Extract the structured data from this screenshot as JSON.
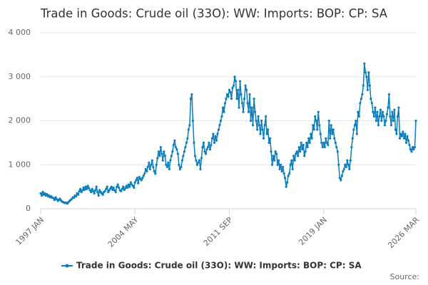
{
  "chart_data": {
    "type": "line",
    "title": "Trade in Goods: Crude oil (33O): WW: Imports: BOP: CP: SA",
    "source": "Source:",
    "categories": [
      "1997 JAN",
      null,
      null,
      null,
      null,
      null,
      null,
      null,
      null,
      null,
      null,
      null,
      null,
      null,
      null,
      null,
      null,
      null,
      null,
      null,
      null,
      null,
      null,
      null,
      null,
      null,
      null,
      null,
      null,
      null,
      null,
      null,
      null,
      null,
      null,
      null,
      null,
      null,
      null,
      null,
      null,
      null,
      null,
      null,
      null,
      null,
      null,
      null,
      null,
      null,
      null,
      null,
      null,
      null,
      null,
      null,
      null,
      null,
      null,
      null,
      null,
      null,
      null,
      null,
      null,
      null,
      null,
      null,
      null,
      null,
      null,
      null,
      null,
      null,
      null,
      null,
      null,
      null,
      null,
      null,
      null,
      null,
      null,
      null,
      null,
      null,
      null,
      null,
      "2004 MAY",
      null,
      null,
      null,
      null,
      null,
      null,
      null,
      null,
      null,
      null,
      null,
      null,
      null,
      null,
      null,
      null,
      null,
      null,
      null,
      null,
      null,
      null,
      null,
      null,
      null,
      null,
      null,
      null,
      null,
      null,
      null,
      null,
      null,
      null,
      null,
      null,
      null,
      null,
      null,
      null,
      null,
      null,
      null,
      null,
      null,
      null,
      null,
      null,
      null,
      null,
      null,
      null,
      null,
      null,
      null,
      null,
      null,
      null,
      null,
      null,
      null,
      null,
      null,
      null,
      null,
      null,
      null,
      null,
      null,
      null,
      null,
      null,
      null,
      null,
      null,
      null,
      null,
      null,
      null,
      null,
      null,
      null,
      null,
      null,
      null,
      null,
      null,
      "2011 SEP",
      null,
      null,
      null,
      null,
      null,
      null,
      null,
      null,
      null,
      null,
      null,
      null,
      null,
      null,
      null,
      null,
      null,
      null,
      null,
      null,
      null,
      null,
      null,
      null,
      null,
      null,
      null,
      null,
      null,
      null,
      null,
      null,
      null,
      null,
      null,
      null,
      null,
      null,
      null,
      null,
      null,
      null,
      null,
      null,
      null,
      null,
      null,
      null,
      null,
      null,
      null,
      null,
      null,
      null,
      null,
      null,
      null,
      null,
      null,
      null,
      null,
      null,
      null,
      null,
      null,
      null,
      null,
      null,
      null,
      null,
      null,
      null,
      null,
      null,
      null,
      null,
      null,
      null,
      null,
      null,
      null,
      null,
      null,
      null,
      null,
      null,
      null,
      "2019 JAN",
      null,
      null,
      null,
      null,
      null,
      null,
      null,
      null,
      null,
      null,
      null,
      null,
      null,
      null,
      null,
      null,
      null,
      null,
      null,
      null,
      null,
      null,
      null,
      null,
      null,
      null,
      null,
      null,
      null,
      null,
      null,
      null,
      null,
      null,
      null,
      null,
      null,
      null,
      null,
      null,
      null,
      null,
      null,
      null,
      null,
      null,
      null,
      null,
      null,
      null,
      null,
      null,
      null,
      null,
      null,
      null,
      null,
      null,
      null,
      null,
      null,
      null,
      null,
      null,
      null,
      null,
      null,
      null,
      null,
      null,
      null,
      null,
      null,
      null,
      null,
      null,
      null,
      null,
      null,
      null,
      null,
      null,
      null,
      null,
      null,
      "2026 MAR"
    ],
    "series": [
      {
        "name": "Trade in Goods: Crude oil (33O): WW: Imports: BOP: CP: SA",
        "color": "#0a7ebd",
        "values": [
          350,
          300,
          380,
          320,
          350,
          300,
          330,
          280,
          300,
          260,
          280,
          250,
          240,
          200,
          260,
          220,
          180,
          200,
          230,
          190,
          160,
          150,
          140,
          130,
          140,
          120,
          150,
          180,
          200,
          220,
          260,
          250,
          300,
          280,
          350,
          320,
          400,
          450,
          380,
          420,
          480,
          430,
          500,
          450,
          520,
          470,
          420,
          380,
          450,
          400,
          350,
          420,
          500,
          380,
          300,
          420,
          380,
          350,
          320,
          380,
          400,
          450,
          500,
          380,
          420,
          460,
          500,
          430,
          480,
          420,
          380,
          500,
          550,
          480,
          420,
          400,
          450,
          500,
          430,
          470,
          520,
          480,
          550,
          500,
          600,
          550,
          520,
          480,
          600,
          650,
          700,
          580,
          720,
          680,
          650,
          700,
          750,
          800,
          900,
          850,
          950,
          1050,
          900,
          1000,
          1100,
          950,
          850,
          800,
          1000,
          1150,
          1300,
          1200,
          1400,
          1250,
          1100,
          1300,
          1200,
          1000,
          950,
          1050,
          900,
          1100,
          1200,
          1300,
          1450,
          1550,
          1400,
          1350,
          1250,
          1000,
          900,
          950,
          1100,
          1200,
          1300,
          1400,
          1500,
          1600,
          1800,
          1900,
          2500,
          2600,
          2000,
          1500,
          1200,
          1100,
          1000,
          1050,
          1100,
          900,
          1150,
          1400,
          1500,
          1300,
          1250,
          1350,
          1400,
          1500,
          1350,
          1450,
          1600,
          1700,
          1500,
          1650,
          1550,
          1700,
          1800,
          1900,
          2000,
          2100,
          2300,
          2200,
          2400,
          2500,
          2600,
          2550,
          2700,
          2650,
          2500,
          2750,
          2800,
          3000,
          2900,
          2500,
          2700,
          2300,
          2900,
          2600,
          2400,
          2200,
          2500,
          2800,
          2700,
          2400,
          2200,
          2600,
          2000,
          2300,
          1900,
          2500,
          2200,
          2000,
          1800,
          2100,
          1900,
          1700,
          2000,
          1800,
          1600,
          1900,
          2100,
          1700,
          1800,
          1500,
          1600,
          1300,
          1000,
          1200,
          1100,
          1300,
          1250,
          1000,
          1100,
          900,
          1000,
          850,
          950,
          800,
          700,
          500,
          600,
          750,
          800,
          1000,
          1100,
          900,
          1200,
          1100,
          1250,
          1300,
          1200,
          1400,
          1300,
          1500,
          1350,
          1450,
          1200,
          1300,
          1500,
          1400,
          1600,
          1500,
          1700,
          1600,
          1900,
          1800,
          2100,
          2000,
          1800,
          2200,
          1900,
          1700,
          1500,
          1400,
          1500,
          1400,
          1600,
          1500,
          1450,
          2000,
          1600,
          1900,
          1700,
          1800,
          1600,
          1500,
          1400,
          1300,
          1000,
          700,
          650,
          750,
          850,
          900,
          1000,
          950,
          1100,
          1000,
          900,
          1100,
          1400,
          1600,
          1800,
          1900,
          2000,
          1700,
          2200,
          2100,
          2400,
          2500,
          2600,
          2800,
          3300,
          3100,
          3000,
          2700,
          3100,
          2800,
          2500,
          2400,
          2200,
          2100,
          2300,
          2000,
          2200,
          1900,
          2100,
          2250,
          2000,
          2200,
          2100,
          1900,
          2000,
          2150,
          2300,
          2600,
          2100,
          1900,
          2200,
          2000,
          2250,
          1800,
          1700,
          2100,
          2300,
          1600,
          1700,
          1650,
          1750,
          1600,
          1700,
          1500,
          1650,
          1550,
          1450,
          1350,
          1300,
          1400,
          1350,
          1400,
          2000
        ]
      }
    ],
    "ylim": [
      0,
      4000
    ],
    "yticks": [
      0,
      {
        "value": 1000,
        "label": "1 000"
      },
      {
        "value": 2000,
        "label": "2 000"
      },
      {
        "value": 3000,
        "label": "3 000"
      },
      {
        "value": 4000,
        "label": "4 000"
      }
    ],
    "grid": true
  }
}
